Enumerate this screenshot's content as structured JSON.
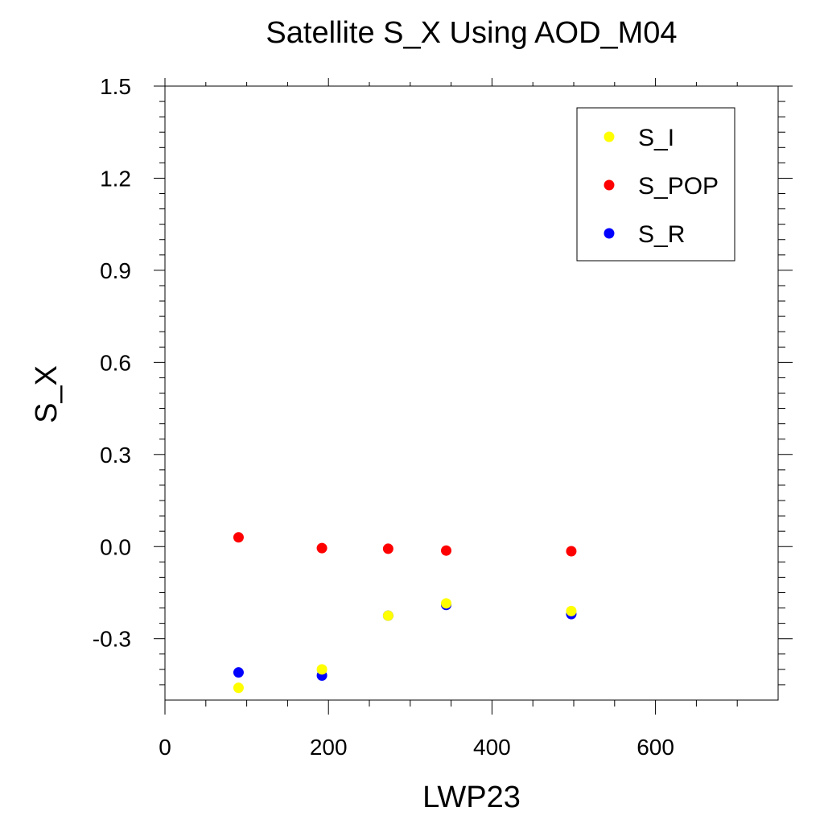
{
  "chart_data": {
    "type": "scatter",
    "title": "Satellite S_X Using AOD_M04",
    "xlabel": "LWP23",
    "ylabel": "S_X",
    "xlim": [
      0,
      750
    ],
    "ylim": [
      -0.5,
      1.5
    ],
    "x_ticks": [
      0,
      200,
      400,
      600
    ],
    "x_tick_labels": [
      "0",
      "200",
      "400",
      "600"
    ],
    "y_ticks": [
      -0.3,
      0.0,
      0.3,
      0.6,
      0.9,
      1.2,
      1.5
    ],
    "y_tick_labels": [
      "-0.3",
      "0.0",
      "0.3",
      "0.6",
      "0.9",
      "1.2",
      "1.5"
    ],
    "grid": false,
    "legend_position": "top-right",
    "series": [
      {
        "name": "S_R",
        "color": "#0000ff",
        "x": [
          90,
          192,
          273,
          344,
          497
        ],
        "y": [
          -0.41,
          -0.42,
          -0.225,
          -0.19,
          -0.22
        ]
      },
      {
        "name": "S_I",
        "color": "#ffff00",
        "x": [
          90,
          192,
          273,
          344,
          497
        ],
        "y": [
          -0.46,
          -0.4,
          -0.225,
          -0.185,
          -0.21
        ]
      },
      {
        "name": "S_POP",
        "color": "#ff0000",
        "x": [
          90,
          192,
          273,
          344,
          497
        ],
        "y": [
          0.03,
          -0.005,
          -0.007,
          -0.013,
          -0.015
        ]
      }
    ],
    "legend_order": [
      "S_I",
      "S_POP",
      "S_R"
    ]
  }
}
